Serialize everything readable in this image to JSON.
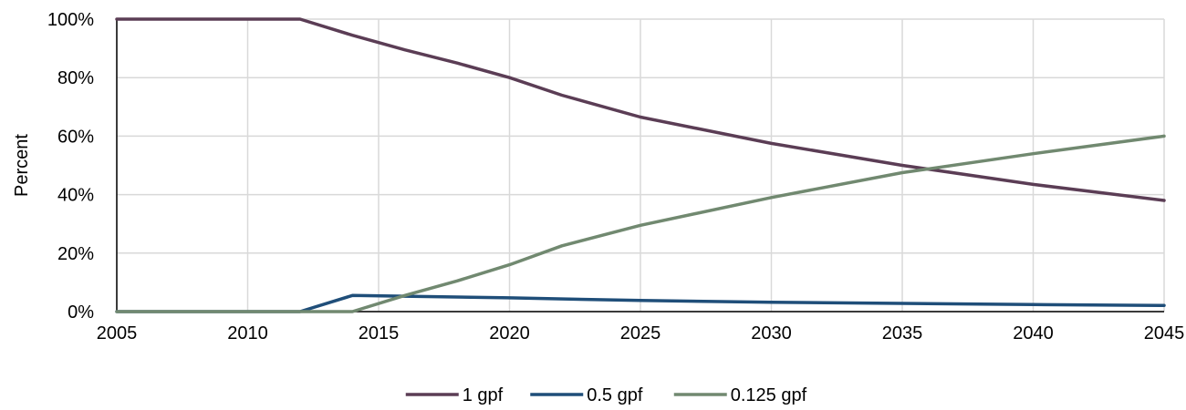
{
  "chart_data": {
    "type": "line",
    "title": "",
    "xlabel": "",
    "ylabel": "Percent",
    "xlim": [
      2005,
      2045
    ],
    "ylim": [
      0,
      100
    ],
    "x_ticks": [
      2005,
      2010,
      2015,
      2020,
      2025,
      2030,
      2035,
      2040,
      2045
    ],
    "y_ticks": [
      0,
      20,
      40,
      60,
      80,
      100
    ],
    "y_tick_labels": [
      "0%",
      "20%",
      "40%",
      "60%",
      "80%",
      "100%"
    ],
    "grid": true,
    "legend_position": "bottom",
    "series": [
      {
        "name": "1 gpf",
        "color": "#5b3d55",
        "x": [
          2005,
          2012,
          2014,
          2016,
          2018,
          2020,
          2022,
          2025,
          2030,
          2035,
          2040,
          2045
        ],
        "values": [
          100,
          100,
          94.5,
          89.5,
          85,
          80,
          74,
          66.5,
          57.5,
          50,
          43.5,
          38
        ]
      },
      {
        "name": "0.5 gpf",
        "color": "#1f4e79",
        "x": [
          2005,
          2012,
          2014,
          2020,
          2025,
          2030,
          2035,
          2040,
          2045
        ],
        "values": [
          0,
          0,
          5.5,
          4.7,
          3.8,
          3.2,
          2.8,
          2.4,
          2.1
        ]
      },
      {
        "name": "0.125 gpf",
        "color": "#718970",
        "x": [
          2005,
          2014,
          2016,
          2018,
          2020,
          2022,
          2025,
          2030,
          2035,
          2040,
          2045
        ],
        "values": [
          0,
          0,
          5.5,
          10.5,
          16,
          22.5,
          29.5,
          39,
          47.5,
          54,
          60
        ]
      }
    ]
  }
}
